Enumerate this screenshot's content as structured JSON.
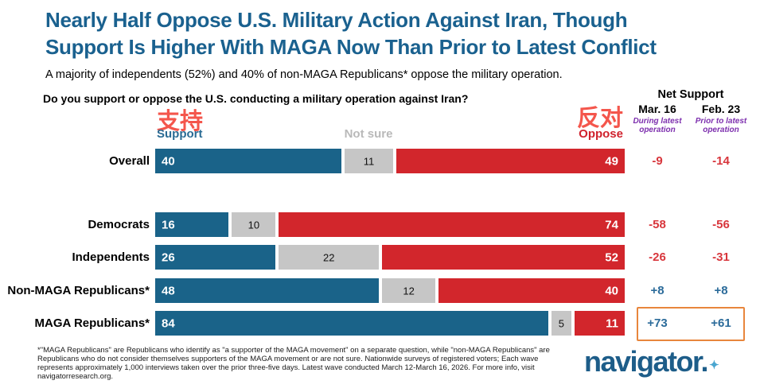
{
  "title": {
    "line1": "Nearly Half Oppose U.S. Military Action Against Iran, Though",
    "line2": "Support Is Higher With MAGA Now Than Prior to Latest Conflict"
  },
  "subtitle": "A majority of independents (52%) and 40% of non-MAGA Republicans* oppose the military operation.",
  "question": "Do you support or oppose the U.S. conducting a military operation against Iran?",
  "annotations": {
    "support_zh": "支持",
    "oppose_zh": "反对"
  },
  "legend": {
    "support": "Support",
    "not_sure": "Not sure",
    "oppose": "Oppose"
  },
  "net_header": {
    "title": "Net Support",
    "col1_date": "Mar. 16",
    "col1_desc": "During latest\noperation",
    "col2_date": "Feb. 23",
    "col2_desc": "Prior to latest\noperation"
  },
  "chart_data": {
    "type": "bar",
    "orientation": "horizontal-stacked",
    "xlim": [
      0,
      100
    ],
    "grid": false,
    "categories": [
      "Overall",
      "Democrats",
      "Independents",
      "Non-MAGA Republicans*",
      "MAGA Republicans*"
    ],
    "series": [
      {
        "name": "Support",
        "color": "#1a6389",
        "values": [
          40,
          16,
          26,
          48,
          84
        ]
      },
      {
        "name": "Not sure",
        "color": "#c6c6c6",
        "values": [
          11,
          10,
          22,
          12,
          5
        ]
      },
      {
        "name": "Oppose",
        "color": "#d2262c",
        "values": [
          49,
          74,
          52,
          40,
          11
        ]
      }
    ],
    "net_support": {
      "columns": [
        "Mar. 16",
        "Feb. 23"
      ],
      "rows": [
        {
          "category": "Overall",
          "values": [
            "-9",
            "-14"
          ],
          "highlighted": false
        },
        {
          "category": "Democrats",
          "values": [
            "-58",
            "-56"
          ],
          "highlighted": false
        },
        {
          "category": "Independents",
          "values": [
            "-26",
            "-31"
          ],
          "highlighted": false
        },
        {
          "category": "Non-MAGA Republicans*",
          "values": [
            "+8",
            "+8"
          ],
          "highlighted": false
        },
        {
          "category": "MAGA Republicans*",
          "values": [
            "+73",
            "+61"
          ],
          "highlighted": true
        }
      ]
    }
  },
  "footnote": "*\"MAGA Republicans\" are Republicans who identify as \"a supporter of the MAGA movement\" on a separate question, while \"non-MAGA Republicans\" are Republicans who do not consider themselves supporters of the MAGA movement or are not sure. Nationwide surveys of registered voters; Each wave represents approximately 1,000 interviews taken over the prior three-five days. Latest wave conducted March 12-March 16, 2026. For more info, visit navigatorresearch.org.",
  "logo": {
    "text": "navigator.",
    "star": "✦"
  },
  "colors": {
    "title_blue": "#1a618f",
    "bar_blue": "#1a6389",
    "bar_gray": "#c6c6c6",
    "bar_red": "#d2262c",
    "support_label": "#2a6b94",
    "not_sure_label": "#b9b9b9",
    "oppose_label": "#d0222d",
    "net_negative": "#d8363c",
    "net_positive": "#2b6b9a",
    "purple_desc": "#7d2fae",
    "chinese_red": "#f4564c",
    "highlight_orange": "#e8863c",
    "logo_blue": "#1d5d89",
    "logo_star_blue": "#4aa6d0"
  }
}
